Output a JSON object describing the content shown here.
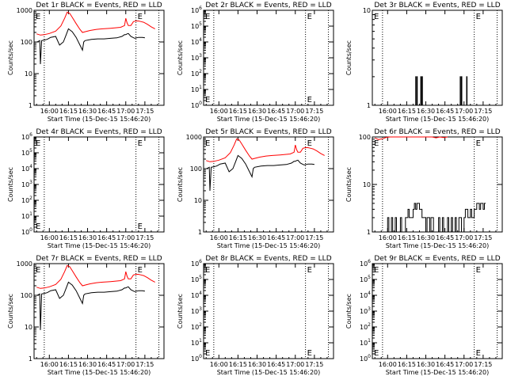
{
  "figure": {
    "x_tick_labels": [
      "16:00",
      "16:15",
      "16:30",
      "16:45",
      "17:00",
      "17:15"
    ],
    "x_tick_minutes": [
      0,
      15,
      30,
      45,
      60,
      75
    ],
    "x_range_minutes": [
      -12,
      90
    ],
    "marker_lines_minutes": [
      -4,
      68,
      86
    ],
    "colors": {
      "events": "#000000",
      "lld": "#ff0000",
      "axes": "#000000"
    }
  },
  "chart_data": [
    {
      "type": "line",
      "title": "Det 1r BLACK = Events, RED = LLD",
      "xlabel": "Start Time (15-Dec-15 15:46:20)",
      "ylabel": "Counts/sec",
      "yscale": "log",
      "ylim": [
        1,
        1000
      ],
      "y_ticks": [
        {
          "value": 1,
          "label": "1"
        },
        {
          "value": 10,
          "label": "10"
        },
        {
          "value": 100,
          "label": "100"
        },
        {
          "value": 1000,
          "label": "1000"
        }
      ],
      "corner_label": "E",
      "series": [
        {
          "name": "Events",
          "color": "#000000",
          "x": [
            -9.5,
            -7.5,
            -7,
            -6,
            -4,
            -2,
            -1,
            1,
            5,
            8,
            11,
            13,
            15,
            18,
            21,
            24,
            26,
            27,
            28,
            33,
            38,
            43,
            48,
            53,
            57,
            59,
            60,
            61,
            62,
            64,
            67,
            70,
            73,
            75
          ],
          "y": [
            100,
            110,
            20,
            110,
            115,
            120,
            125,
            140,
            150,
            80,
            100,
            160,
            260,
            210,
            140,
            80,
            55,
            100,
            110,
            120,
            125,
            125,
            130,
            135,
            150,
            170,
            170,
            180,
            185,
            150,
            130,
            140,
            140,
            135
          ]
        },
        {
          "name": "LLD",
          "color": "#ff0000",
          "x": [
            -10,
            -7,
            -4,
            0,
            5,
            9,
            12,
            14,
            16,
            18,
            21,
            24,
            26,
            28,
            32,
            37,
            42,
            48,
            52,
            56,
            59,
            60,
            61,
            62,
            64,
            66,
            68,
            70,
            72,
            74,
            77,
            80,
            83
          ],
          "y": [
            180,
            165,
            170,
            185,
            220,
            320,
            560,
            870,
            800,
            600,
            380,
            250,
            200,
            210,
            230,
            250,
            260,
            270,
            280,
            290,
            330,
            560,
            400,
            330,
            330,
            440,
            460,
            460,
            440,
            420,
            360,
            300,
            260
          ]
        }
      ]
    },
    {
      "type": "line",
      "title": "Det 2r BLACK = Events, RED = LLD",
      "xlabel": "Start Time (15-Dec-15 15:46:20)",
      "ylabel": "Counts/sec",
      "yscale": "log",
      "ylim": [
        1,
        1000000
      ],
      "y_ticks": [
        {
          "value": 1,
          "label": "10^0"
        },
        {
          "value": 10,
          "label": "10^1"
        },
        {
          "value": 100,
          "label": "10^2"
        },
        {
          "value": 1000,
          "label": "10^3"
        },
        {
          "value": 10000,
          "label": "10^4"
        },
        {
          "value": 100000,
          "label": "10^5"
        },
        {
          "value": 1000000,
          "label": "10^6"
        }
      ],
      "corner_label": "E",
      "series": []
    },
    {
      "type": "line",
      "title": "Det 3r BLACK = Events, RED = LLD",
      "xlabel": "Start Time (15-Dec-15 15:46:20)",
      "ylabel": "Counts/sec",
      "yscale": "log",
      "ylim": [
        1,
        10
      ],
      "y_ticks": [
        {
          "value": 1,
          "label": "1"
        },
        {
          "value": 10,
          "label": "10"
        }
      ],
      "corner_label": "E",
      "series": [
        {
          "name": "Events",
          "color": "#000000",
          "x": [
            22,
            22,
            22.3,
            22.3,
            23,
            23,
            23.3,
            23.3,
            26,
            26,
            26.3,
            26.3,
            27,
            27,
            27.4,
            27.4,
            57,
            57,
            57.3,
            57.3,
            58,
            58,
            58.3,
            58.3,
            62,
            62,
            62.4,
            62.4
          ],
          "y": [
            1,
            2,
            2,
            1,
            1,
            2,
            2,
            1,
            1,
            2,
            2,
            1,
            1,
            2,
            2,
            1,
            1,
            2,
            2,
            1,
            1,
            2,
            2,
            1,
            1,
            2,
            2,
            1
          ]
        }
      ]
    },
    {
      "type": "line",
      "title": "Det 4r BLACK = Events, RED = LLD",
      "xlabel": "Start Time (15-Dec-15 15:46:20)",
      "ylabel": "Counts/sec",
      "yscale": "log",
      "ylim": [
        1,
        1000000
      ],
      "y_ticks": [
        {
          "value": 1,
          "label": "10^0"
        },
        {
          "value": 10,
          "label": "10^1"
        },
        {
          "value": 100,
          "label": "10^2"
        },
        {
          "value": 1000,
          "label": "10^3"
        },
        {
          "value": 10000,
          "label": "10^4"
        },
        {
          "value": 100000,
          "label": "10^5"
        },
        {
          "value": 1000000,
          "label": "10^6"
        }
      ],
      "corner_label": "E",
      "series": []
    },
    {
      "type": "line",
      "title": "Det 5r BLACK = Events, RED = LLD",
      "xlabel": "Start Time (15-Dec-15 15:46:20)",
      "ylabel": "Counts/sec",
      "yscale": "log",
      "ylim": [
        1,
        1000
      ],
      "y_ticks": [
        {
          "value": 1,
          "label": "1"
        },
        {
          "value": 10,
          "label": "10"
        },
        {
          "value": 100,
          "label": "100"
        },
        {
          "value": 1000,
          "label": "1000"
        }
      ],
      "corner_label": "E",
      "series": [
        {
          "name": "Events",
          "color": "#000000",
          "x": [
            -9.5,
            -7.5,
            -7,
            -6,
            -4,
            -2,
            -1,
            1,
            5,
            8,
            11,
            13,
            15,
            18,
            21,
            24,
            26,
            27,
            28,
            33,
            38,
            43,
            48,
            53,
            57,
            59,
            60,
            61,
            62,
            64,
            67,
            70,
            73,
            75
          ],
          "y": [
            100,
            110,
            20,
            110,
            115,
            120,
            125,
            140,
            150,
            80,
            100,
            160,
            260,
            210,
            140,
            80,
            55,
            100,
            110,
            120,
            125,
            125,
            130,
            135,
            150,
            170,
            170,
            180,
            185,
            150,
            130,
            140,
            140,
            135
          ]
        },
        {
          "name": "LLD",
          "color": "#ff0000",
          "x": [
            -10,
            -7,
            -4,
            0,
            5,
            9,
            12,
            14,
            16,
            18,
            21,
            24,
            26,
            28,
            32,
            37,
            42,
            48,
            52,
            56,
            59,
            60,
            61,
            62,
            64,
            66,
            68,
            70,
            72,
            74,
            77,
            80,
            83
          ],
          "y": [
            180,
            165,
            170,
            185,
            220,
            320,
            560,
            870,
            800,
            600,
            380,
            250,
            200,
            210,
            230,
            250,
            260,
            270,
            280,
            290,
            330,
            560,
            400,
            330,
            330,
            440,
            460,
            460,
            440,
            420,
            360,
            300,
            260
          ]
        }
      ]
    },
    {
      "type": "line",
      "title": "Det 6r BLACK = Events, RED = LLD",
      "xlabel": "Start Time (15-Dec-15 15:46:20)",
      "ylabel": "Counts/sec",
      "yscale": "log",
      "ylim": [
        1,
        100
      ],
      "y_ticks": [
        {
          "value": 1,
          "label": "1"
        },
        {
          "value": 10,
          "label": "10"
        },
        {
          "value": 100,
          "label": "100"
        }
      ],
      "corner_label": "E",
      "series": [
        {
          "name": "Events",
          "color": "#000000",
          "x": [
            -1,
            0,
            0,
            1,
            1,
            3,
            3,
            4,
            4,
            6,
            6,
            7,
            7,
            10,
            10,
            11,
            11,
            14,
            14,
            16,
            16,
            17,
            17,
            20,
            20,
            21,
            21,
            22,
            22,
            23,
            23,
            25,
            25,
            27,
            27,
            30,
            30,
            31,
            31,
            33,
            33,
            34,
            34,
            36,
            36,
            40,
            40,
            41,
            41,
            43,
            43,
            44,
            44,
            47,
            47,
            48,
            48,
            50,
            50,
            51,
            51,
            53,
            53,
            54,
            54,
            56,
            56,
            58,
            58,
            60,
            60,
            61,
            61,
            63,
            63,
            65,
            65,
            66,
            66,
            68,
            68,
            70,
            70,
            72,
            72,
            73,
            73,
            75,
            75,
            76,
            76,
            77
          ],
          "y": [
            1,
            1,
            2,
            2,
            1,
            1,
            2,
            2,
            1,
            1,
            2,
            2,
            1,
            1,
            2,
            2,
            1,
            1,
            2,
            2,
            3,
            3,
            2,
            2,
            3,
            3,
            4,
            4,
            3,
            3,
            4,
            4,
            3,
            3,
            2,
            2,
            1,
            1,
            2,
            2,
            1,
            1,
            2,
            2,
            1,
            1,
            2,
            2,
            1,
            1,
            2,
            2,
            1,
            1,
            2,
            2,
            1,
            1,
            2,
            2,
            1,
            1,
            2,
            2,
            1,
            1,
            2,
            2,
            1,
            1,
            2,
            2,
            3,
            3,
            2,
            2,
            3,
            3,
            2,
            2,
            3,
            3,
            4,
            4,
            3,
            3,
            4,
            4,
            3,
            3,
            4,
            4
          ]
        },
        {
          "name": "LLD",
          "color": "#ff0000",
          "x": [
            -10,
            -7,
            -4,
            -1,
            2,
            35,
            38,
            41,
            44,
            47
          ],
          "y": [
            95,
            88,
            92,
            98,
            100,
            100,
            96,
            100,
            97,
            100
          ]
        }
      ]
    },
    {
      "type": "line",
      "title": "Det 7r BLACK = Events, RED = LLD",
      "xlabel": "Start Time (15-Dec-15 15:46:20)",
      "ylabel": "Counts/sec",
      "yscale": "log",
      "ylim": [
        1,
        1000
      ],
      "y_ticks": [
        {
          "value": 1,
          "label": "1"
        },
        {
          "value": 10,
          "label": "10"
        },
        {
          "value": 100,
          "label": "100"
        },
        {
          "value": 1000,
          "label": "1000"
        }
      ],
      "corner_label": "E",
      "series": [
        {
          "name": "Events",
          "color": "#000000",
          "x": [
            -9.5,
            -7.5,
            -7,
            -6,
            -4,
            -2,
            -1,
            1,
            5,
            8,
            11,
            13,
            15,
            18,
            21,
            24,
            26,
            27,
            28,
            33,
            38,
            43,
            48,
            53,
            57,
            59,
            60,
            61,
            62,
            64,
            67,
            70,
            73,
            75
          ],
          "y": [
            100,
            110,
            8,
            110,
            115,
            120,
            125,
            140,
            150,
            80,
            100,
            160,
            260,
            210,
            140,
            80,
            55,
            100,
            110,
            120,
            125,
            125,
            130,
            135,
            150,
            170,
            170,
            180,
            185,
            150,
            130,
            140,
            140,
            135
          ]
        },
        {
          "name": "LLD",
          "color": "#ff0000",
          "x": [
            -10,
            -7,
            -4,
            0,
            5,
            9,
            12,
            14,
            16,
            18,
            21,
            24,
            26,
            28,
            32,
            37,
            42,
            48,
            52,
            56,
            59,
            60,
            61,
            62,
            64,
            66,
            68,
            70,
            72,
            74,
            77,
            80,
            83
          ],
          "y": [
            180,
            165,
            170,
            185,
            220,
            320,
            560,
            870,
            800,
            600,
            380,
            250,
            200,
            210,
            230,
            250,
            260,
            270,
            280,
            290,
            330,
            560,
            400,
            330,
            330,
            440,
            460,
            460,
            440,
            420,
            360,
            300,
            260
          ]
        }
      ]
    },
    {
      "type": "line",
      "title": "Det 8r BLACK = Events, RED = LLD",
      "xlabel": "Start Time (15-Dec-15 15:46:20)",
      "ylabel": "Counts/sec",
      "yscale": "log",
      "ylim": [
        1,
        1000000
      ],
      "y_ticks": [
        {
          "value": 1,
          "label": "10^0"
        },
        {
          "value": 10,
          "label": "10^1"
        },
        {
          "value": 100,
          "label": "10^2"
        },
        {
          "value": 1000,
          "label": "10^3"
        },
        {
          "value": 10000,
          "label": "10^4"
        },
        {
          "value": 100000,
          "label": "10^5"
        },
        {
          "value": 1000000,
          "label": "10^6"
        }
      ],
      "corner_label": "E",
      "series": []
    },
    {
      "type": "line",
      "title": "Det 9r BLACK = Events, RED = LLD",
      "xlabel": "Start Time (15-Dec-15 15:46:20)",
      "ylabel": "Counts/sec",
      "yscale": "log",
      "ylim": [
        1,
        1000000
      ],
      "y_ticks": [
        {
          "value": 1,
          "label": "10^0"
        },
        {
          "value": 10,
          "label": "10^1"
        },
        {
          "value": 100,
          "label": "10^2"
        },
        {
          "value": 1000,
          "label": "10^3"
        },
        {
          "value": 10000,
          "label": "10^4"
        },
        {
          "value": 100000,
          "label": "10^5"
        },
        {
          "value": 1000000,
          "label": "10^6"
        }
      ],
      "corner_label": "E",
      "series": []
    }
  ]
}
